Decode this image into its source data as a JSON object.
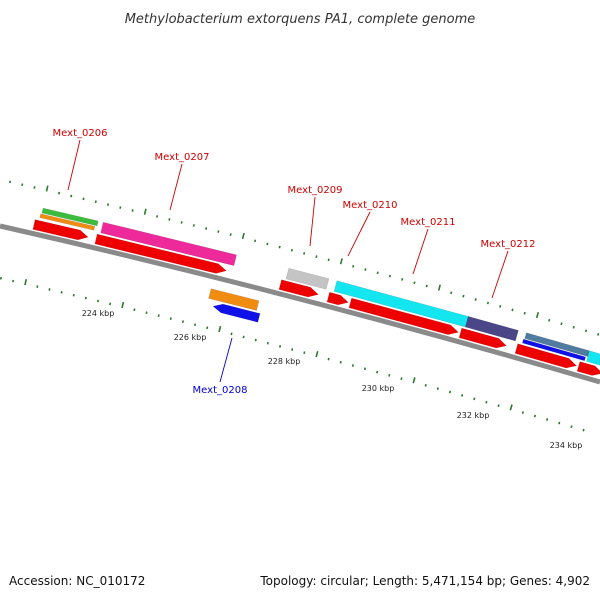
{
  "title": "Methylobacterium extorquens PA1, complete genome",
  "footer": {
    "accession": "Accession: NC_010172",
    "summary": "Topology: circular; Length: 5,471,154 bp; Genes: 4,902"
  },
  "colors": {
    "backbone": "#8a8a8a",
    "tick": "#2d7a2d",
    "forward_label": "#cc0000",
    "reverse_label": "#0000cc",
    "cds": "#ee0000",
    "magenta": "#ee2a9a",
    "cyan": "#14e6f0",
    "slate": "#4a4688",
    "steelblue": "#507ca0",
    "blue": "#1010e8",
    "orange": "#f08c10",
    "green": "#3cbc3c",
    "gray": "#c4c4c4"
  },
  "scale_labels": [
    "224 kbp",
    "226 kbp",
    "228 kbp",
    "230 kbp",
    "232 kbp",
    "234 kbp"
  ],
  "gene_labels": [
    {
      "text": "Mext_0206",
      "strand": "forward"
    },
    {
      "text": "Mext_0207",
      "strand": "forward"
    },
    {
      "text": "Mext_0208",
      "strand": "reverse"
    },
    {
      "text": "Mext_0209",
      "strand": "forward"
    },
    {
      "text": "Mext_0210",
      "strand": "forward"
    },
    {
      "text": "Mext_0211",
      "strand": "forward"
    },
    {
      "text": "Mext_0212",
      "strand": "forward"
    }
  ]
}
